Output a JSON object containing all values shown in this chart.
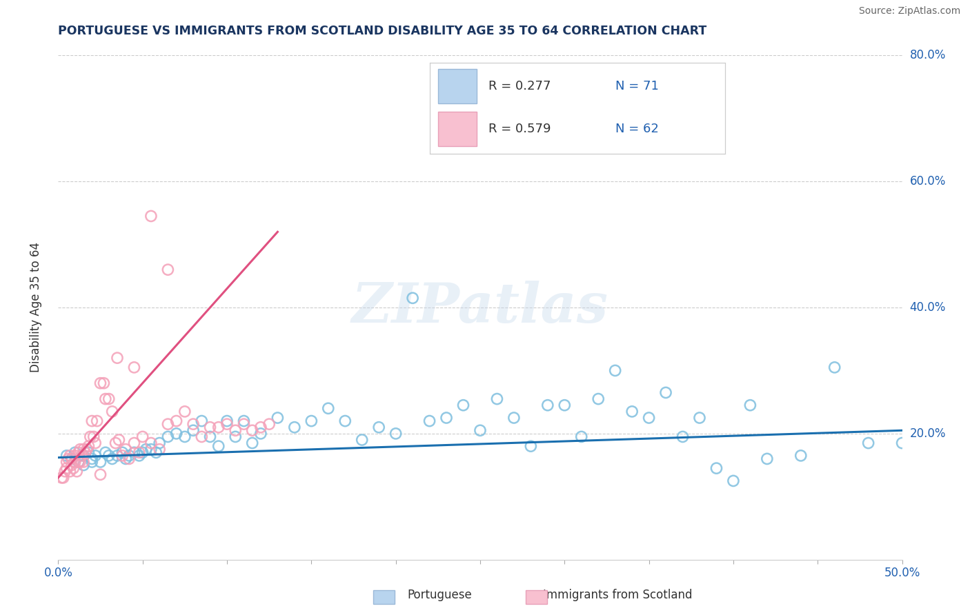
{
  "title": "PORTUGUESE VS IMMIGRANTS FROM SCOTLAND DISABILITY AGE 35 TO 64 CORRELATION CHART",
  "source": "Source: ZipAtlas.com",
  "ylabel": "Disability Age 35 to 64",
  "xlim": [
    0.0,
    0.5
  ],
  "ylim": [
    0.0,
    0.8
  ],
  "xticks": [
    0.0,
    0.05,
    0.1,
    0.15,
    0.2,
    0.25,
    0.3,
    0.35,
    0.4,
    0.45,
    0.5
  ],
  "xtick_labels": [
    "0.0%",
    "",
    "",
    "",
    "",
    "",
    "",
    "",
    "",
    "",
    "50.0%"
  ],
  "yticks": [
    0.0,
    0.1,
    0.2,
    0.3,
    0.4,
    0.5,
    0.6,
    0.7,
    0.8
  ],
  "ytick_labels": [
    "",
    "",
    "20.0%",
    "",
    "40.0%",
    "",
    "60.0%",
    "",
    "80.0%"
  ],
  "legend_r1": "R = 0.277",
  "legend_n1": "N = 71",
  "legend_r2": "R = 0.579",
  "legend_n2": "N = 62",
  "blue_color": "#7fbfdf",
  "pink_color": "#f4a0b8",
  "trend_blue": "#1a6faf",
  "trend_pink": "#e05080",
  "title_color": "#1a3560",
  "axis_label_color": "#2060b0",
  "source_color": "#666666",
  "watermark": "ZIPatlas",
  "blue_scatter_x": [
    0.005,
    0.008,
    0.01,
    0.012,
    0.015,
    0.015,
    0.018,
    0.02,
    0.02,
    0.022,
    0.025,
    0.028,
    0.03,
    0.032,
    0.035,
    0.038,
    0.04,
    0.042,
    0.045,
    0.048,
    0.05,
    0.052,
    0.055,
    0.058,
    0.06,
    0.065,
    0.07,
    0.075,
    0.08,
    0.085,
    0.09,
    0.095,
    0.1,
    0.105,
    0.11,
    0.115,
    0.12,
    0.13,
    0.14,
    0.15,
    0.16,
    0.17,
    0.18,
    0.19,
    0.2,
    0.21,
    0.22,
    0.23,
    0.24,
    0.25,
    0.26,
    0.27,
    0.28,
    0.29,
    0.3,
    0.31,
    0.32,
    0.33,
    0.34,
    0.35,
    0.36,
    0.37,
    0.38,
    0.39,
    0.4,
    0.41,
    0.42,
    0.44,
    0.46,
    0.48,
    0.5
  ],
  "blue_scatter_y": [
    0.165,
    0.16,
    0.17,
    0.155,
    0.165,
    0.15,
    0.17,
    0.16,
    0.155,
    0.165,
    0.155,
    0.17,
    0.165,
    0.16,
    0.165,
    0.17,
    0.16,
    0.165,
    0.17,
    0.165,
    0.17,
    0.175,
    0.175,
    0.17,
    0.185,
    0.195,
    0.2,
    0.195,
    0.205,
    0.22,
    0.195,
    0.18,
    0.22,
    0.195,
    0.22,
    0.185,
    0.2,
    0.225,
    0.21,
    0.22,
    0.24,
    0.22,
    0.19,
    0.21,
    0.2,
    0.415,
    0.22,
    0.225,
    0.245,
    0.205,
    0.255,
    0.225,
    0.18,
    0.245,
    0.245,
    0.195,
    0.255,
    0.3,
    0.235,
    0.225,
    0.265,
    0.195,
    0.225,
    0.145,
    0.125,
    0.245,
    0.16,
    0.165,
    0.305,
    0.185,
    0.185
  ],
  "pink_scatter_x": [
    0.002,
    0.003,
    0.004,
    0.005,
    0.005,
    0.006,
    0.007,
    0.007,
    0.008,
    0.008,
    0.009,
    0.01,
    0.01,
    0.011,
    0.012,
    0.012,
    0.013,
    0.013,
    0.014,
    0.015,
    0.015,
    0.016,
    0.017,
    0.018,
    0.019,
    0.02,
    0.021,
    0.022,
    0.023,
    0.025,
    0.027,
    0.028,
    0.03,
    0.032,
    0.034,
    0.036,
    0.038,
    0.04,
    0.042,
    0.045,
    0.048,
    0.05,
    0.055,
    0.06,
    0.065,
    0.07,
    0.075,
    0.08,
    0.085,
    0.09,
    0.095,
    0.1,
    0.105,
    0.11,
    0.115,
    0.12,
    0.125,
    0.065,
    0.055,
    0.045,
    0.035,
    0.025
  ],
  "pink_scatter_y": [
    0.13,
    0.13,
    0.14,
    0.145,
    0.155,
    0.16,
    0.14,
    0.165,
    0.15,
    0.16,
    0.145,
    0.155,
    0.165,
    0.14,
    0.17,
    0.155,
    0.155,
    0.175,
    0.165,
    0.155,
    0.175,
    0.17,
    0.175,
    0.18,
    0.195,
    0.22,
    0.195,
    0.185,
    0.22,
    0.28,
    0.28,
    0.255,
    0.255,
    0.235,
    0.185,
    0.19,
    0.165,
    0.175,
    0.16,
    0.185,
    0.17,
    0.195,
    0.185,
    0.175,
    0.215,
    0.22,
    0.235,
    0.215,
    0.195,
    0.21,
    0.21,
    0.215,
    0.205,
    0.215,
    0.205,
    0.21,
    0.215,
    0.46,
    0.545,
    0.305,
    0.32,
    0.135
  ],
  "blue_trend_x": [
    0.0,
    0.5
  ],
  "blue_trend_y": [
    0.162,
    0.205
  ],
  "pink_trend_x": [
    0.0,
    0.13
  ],
  "pink_trend_y": [
    0.13,
    0.52
  ],
  "grid_color": "#cccccc",
  "background_color": "#ffffff"
}
